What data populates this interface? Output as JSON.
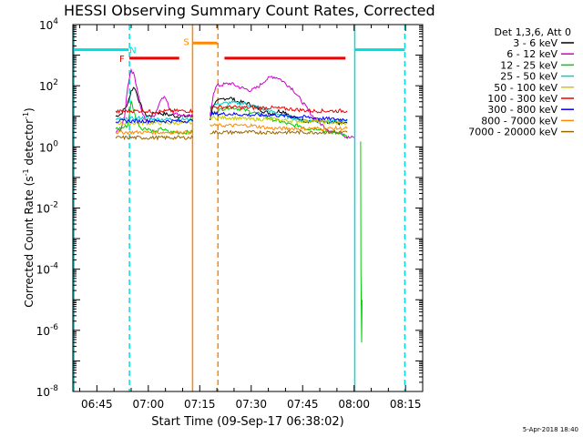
{
  "chart_data": {
    "type": "line",
    "title": "HESSI Observing Summary Count Rates, Corrected",
    "xlabel": "Start Time (09-Sep-17 06:38:02)",
    "ylabel": "Corrected Count Rate (s⁻¹ detector⁻¹)",
    "ylabel_parts": [
      "Corrected Count Rate (s",
      "-1",
      " detector",
      "-1",
      ")"
    ],
    "yscale": "log",
    "xlim_minutes": [
      38.0,
      140.0
    ],
    "ylim": [
      1e-08,
      10000.0
    ],
    "x_ticks": [
      {
        "m": 45,
        "label": "06:45"
      },
      {
        "m": 60,
        "label": "07:00"
      },
      {
        "m": 75,
        "label": "07:15"
      },
      {
        "m": 90,
        "label": "07:30"
      },
      {
        "m": 105,
        "label": "07:45"
      },
      {
        "m": 120,
        "label": "08:00"
      },
      {
        "m": 135,
        "label": "08:15"
      }
    ],
    "y_ticks": [
      {
        "exp": 4,
        "base": "10",
        "sup": "4"
      },
      {
        "exp": 2,
        "base": "10",
        "sup": "2"
      },
      {
        "exp": 0,
        "base": "10",
        "sup": "0"
      },
      {
        "exp": -2,
        "base": "10",
        "sup": "-2"
      },
      {
        "exp": -4,
        "base": "10",
        "sup": "-4"
      },
      {
        "exp": -6,
        "base": "10",
        "sup": "-6"
      },
      {
        "exp": -8,
        "base": "10",
        "sup": "-8"
      }
    ],
    "legend_header": "Det 1,3,6, Att 0",
    "legend_position": "outside-right",
    "series": [
      {
        "name": "3 - 6 keV",
        "color": "#000000",
        "segments": [
          {
            "x": [
              50.5,
              52,
              54,
              55,
              56,
              57,
              58,
              59,
              60,
              61,
              62,
              63,
              64,
              65,
              66,
              67,
              68,
              69,
              70,
              71,
              72,
              73
            ],
            "y": [
              10,
              12,
              25,
              70,
              90,
              40,
              20,
              12,
              10,
              11,
              14,
              13,
              12,
              12,
              11,
              11,
              10,
              10,
              10,
              10,
              10,
              10
            ]
          },
          {
            "x": [
              78,
              79,
              80,
              82,
              84,
              86,
              88,
              90,
              92,
              94,
              96,
              98,
              100,
              102,
              104,
              106,
              108,
              110,
              112,
              114,
              116,
              118
            ],
            "y": [
              8,
              25,
              30,
              38,
              40,
              30,
              28,
              24,
              18,
              14,
              12,
              15,
              14,
              9,
              8,
              7,
              7,
              7,
              6,
              6,
              6,
              6
            ]
          }
        ]
      },
      {
        "name": "6 - 12 keV",
        "color": "#cc00cc",
        "segments": [
          {
            "x": [
              50.5,
              52,
              53,
              54,
              55,
              56,
              57,
              58,
              59,
              60,
              62,
              64,
              65,
              66,
              68,
              70,
              72,
              73
            ],
            "y": [
              3,
              4,
              8,
              100,
              350,
              200,
              60,
              15,
              8,
              7,
              12,
              45,
              40,
              20,
              12,
              11,
              10,
              10
            ]
          },
          {
            "x": [
              78,
              79,
              80,
              82,
              84,
              86,
              88,
              90,
              92,
              94,
              96,
              98,
              100,
              102,
              104,
              106,
              108,
              110,
              112,
              114,
              116,
              118,
              120
            ],
            "y": [
              10,
              60,
              100,
              110,
              120,
              95,
              80,
              70,
              90,
              150,
              200,
              180,
              120,
              80,
              40,
              20,
              10,
              6,
              4,
              3,
              3,
              2,
              2
            ]
          }
        ]
      },
      {
        "name": "12 - 25 keV",
        "color": "#00cc00",
        "segments": [
          {
            "x": [
              50.5,
              52,
              54,
              55,
              56,
              57,
              58,
              60,
              62,
              64,
              66,
              68,
              70,
              72,
              73
            ],
            "y": [
              4,
              4,
              5,
              30,
              12,
              6,
              4,
              4,
              3,
              4,
              3,
              3,
              3,
              3,
              3
            ]
          },
          {
            "x": [
              78,
              80,
              82,
              84,
              86,
              88,
              90,
              92,
              94,
              96,
              98,
              100,
              102,
              104,
              106,
              108,
              110,
              112,
              114,
              116,
              118
            ],
            "y": [
              10,
              15,
              18,
              20,
              18,
              16,
              14,
              12,
              10,
              8,
              7,
              6,
              5,
              5,
              4,
              4,
              4,
              3,
              3,
              3,
              2
            ]
          },
          {
            "x": [
              121.9,
              122.0,
              122.2,
              122.3
            ],
            "y": [
              1.5,
              0.0001,
              4e-07,
              1e-05
            ]
          }
        ]
      },
      {
        "name": "25 - 50 keV",
        "color": "#00cccc",
        "segments": [
          {
            "x": [
              50.5,
              54,
              58,
              62,
              66,
              70,
              73
            ],
            "y": [
              8,
              8,
              9,
              8,
              8,
              8,
              8
            ]
          },
          {
            "x": [
              78,
              80,
              84,
              88,
              92,
              96,
              100,
              104,
              108,
              112,
              116,
              118
            ],
            "y": [
              20,
              25,
              28,
              26,
              20,
              14,
              10,
              8,
              7,
              7,
              7,
              7
            ]
          }
        ]
      },
      {
        "name": "50 - 100 keV",
        "color": "#cccc00",
        "segments": [
          {
            "x": [
              50.5,
              54,
              58,
              62,
              66,
              70,
              73
            ],
            "y": [
              6,
              6,
              6,
              6,
              6,
              6,
              6
            ]
          },
          {
            "x": [
              78,
              84,
              90,
              96,
              102,
              108,
              114,
              118
            ],
            "y": [
              9,
              9,
              8,
              8,
              7,
              7,
              6,
              6
            ]
          }
        ]
      },
      {
        "name": "100 - 300 keV",
        "color": "#ee0000",
        "segments": [
          {
            "x": [
              50.5,
              54,
              58,
              62,
              66,
              70,
              73
            ],
            "y": [
              14,
              15,
              15,
              14,
              15,
              15,
              15
            ]
          },
          {
            "x": [
              78,
              84,
              90,
              96,
              102,
              108,
              114,
              118
            ],
            "y": [
              20,
              20,
              19,
              19,
              17,
              15,
              15,
              15
            ]
          }
        ]
      },
      {
        "name": "300 - 800 keV",
        "color": "#0000ff",
        "segments": [
          {
            "x": [
              50.5,
              54,
              58,
              62,
              66,
              70,
              73
            ],
            "y": [
              7,
              7,
              7,
              7,
              7,
              7,
              7
            ]
          },
          {
            "x": [
              78,
              84,
              90,
              96,
              102,
              108,
              114,
              118
            ],
            "y": [
              12,
              12,
              11,
              11,
              10,
              9,
              8,
              8
            ]
          }
        ]
      },
      {
        "name": "800 - 7000 keV",
        "color": "#ff8800",
        "segments": [
          {
            "x": [
              50.5,
              54,
              58,
              62,
              66,
              70,
              73
            ],
            "y": [
              3,
              3,
              3,
              3,
              3,
              3,
              3
            ]
          },
          {
            "x": [
              78,
              84,
              90,
              96,
              102,
              108,
              114,
              118
            ],
            "y": [
              5,
              5,
              5,
              4,
              4,
              4,
              4,
              4
            ]
          }
        ]
      },
      {
        "name": "7000 - 20000 keV",
        "color": "#996600",
        "segments": [
          {
            "x": [
              50.5,
              54,
              58,
              62,
              66,
              70,
              73
            ],
            "y": [
              2,
              2,
              2,
              2,
              2,
              2,
              2
            ]
          },
          {
            "x": [
              78,
              84,
              90,
              96,
              102,
              108,
              114,
              118
            ],
            "y": [
              3,
              3,
              3,
              3,
              3,
              3,
              3,
              3
            ]
          }
        ]
      }
    ],
    "vertical_lines": [
      {
        "m": 38.3,
        "color": "#00dddd",
        "style": "solid"
      },
      {
        "m": 54.5,
        "color": "#00dddd",
        "style": "dashed"
      },
      {
        "m": 72.9,
        "color": "#ff8800",
        "style": "solid"
      },
      {
        "m": 80.3,
        "color": "#ff8800",
        "style": "dashed"
      },
      {
        "m": 120.2,
        "color": "#00dddd",
        "style": "solid"
      },
      {
        "m": 134.8,
        "color": "#00dddd",
        "style": "dashed"
      }
    ],
    "flag_bars": [
      {
        "label": "N",
        "color": "#00dddd",
        "x0": 38.0,
        "x1": 54.3,
        "y": 1500,
        "label_m": 55.5,
        "label_y": 1500
      },
      {
        "label": "F",
        "color": "#ee0000",
        "x0": 54.5,
        "x1": 69.0,
        "y": 800,
        "label_m": 52.3,
        "label_y": 800
      },
      {
        "label": "S",
        "color": "#ff8800",
        "x0": 72.9,
        "x1": 80.1,
        "y": 2500,
        "label_m": 71.1,
        "label_y": 2800
      },
      {
        "label": "",
        "color": "#ee0000",
        "x0": 82.2,
        "x1": 117.5,
        "y": 800
      },
      {
        "label": "",
        "color": "#00dddd",
        "x0": 120.2,
        "x1": 134.8,
        "y": 1500
      }
    ],
    "footer_date": "5-Apr-2018 18:40"
  }
}
